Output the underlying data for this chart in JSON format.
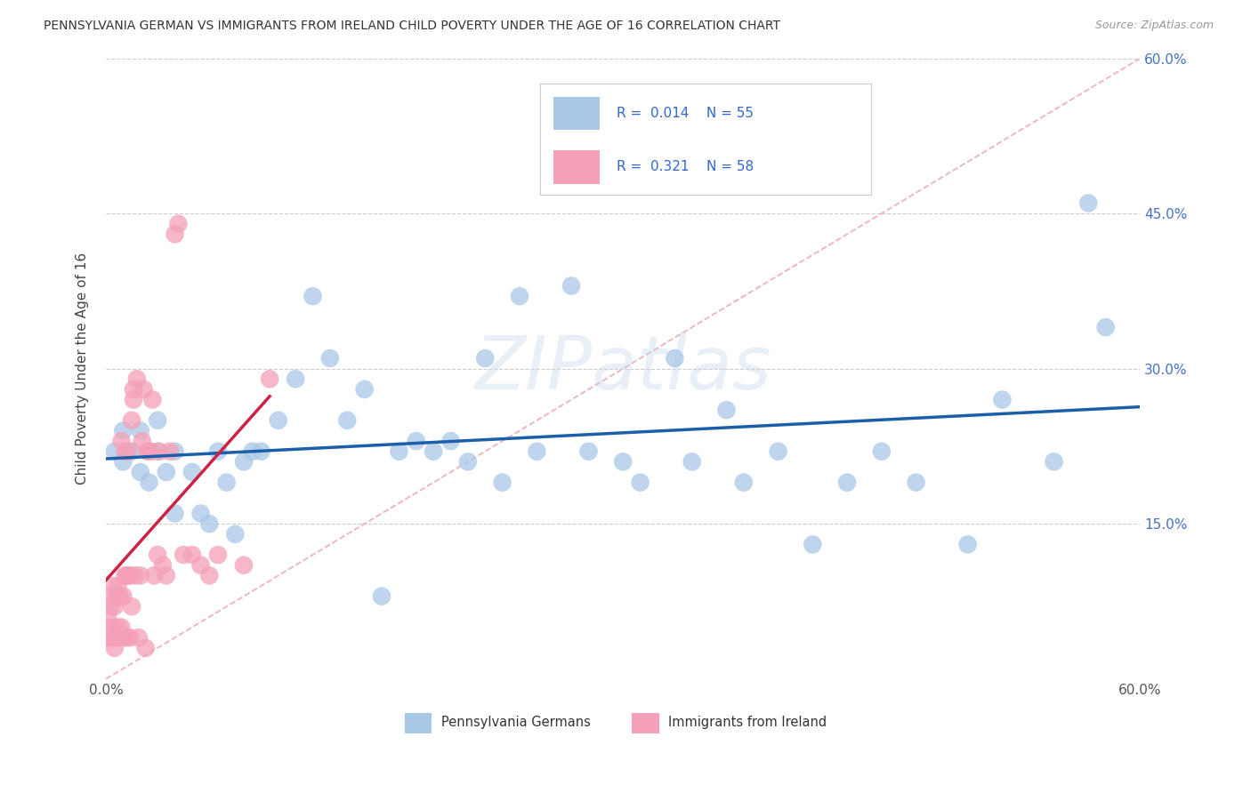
{
  "title": "PENNSYLVANIA GERMAN VS IMMIGRANTS FROM IRELAND CHILD POVERTY UNDER THE AGE OF 16 CORRELATION CHART",
  "source": "Source: ZipAtlas.com",
  "ylabel": "Child Poverty Under the Age of 16",
  "xlim": [
    0.0,
    0.6
  ],
  "ylim": [
    0.0,
    0.6
  ],
  "xticks": [
    0.0,
    0.1,
    0.2,
    0.3,
    0.4,
    0.5,
    0.6
  ],
  "yticks": [
    0.0,
    0.15,
    0.3,
    0.45,
    0.6
  ],
  "ytick_labels_right": [
    "",
    "15.0%",
    "30.0%",
    "45.0%",
    "60.0%"
  ],
  "xtick_labels": [
    "0.0%",
    "",
    "",
    "",
    "",
    "",
    "60.0%"
  ],
  "legend_label1": "Pennsylvania Germans",
  "legend_label2": "Immigrants from Ireland",
  "R1": "0.014",
  "N1": "55",
  "R2": "0.321",
  "N2": "58",
  "blue_color": "#a8c8e8",
  "pink_color": "#f4a0b8",
  "trend_blue_color": "#1a5fa8",
  "trend_pink_color": "#cc2244",
  "diag_color": "#e8a0b0",
  "watermark": "ZIPatlas",
  "blue_dots_x": [
    0.005,
    0.01,
    0.01,
    0.015,
    0.02,
    0.02,
    0.025,
    0.03,
    0.03,
    0.035,
    0.04,
    0.04,
    0.05,
    0.055,
    0.06,
    0.065,
    0.07,
    0.075,
    0.08,
    0.085,
    0.09,
    0.1,
    0.11,
    0.12,
    0.13,
    0.14,
    0.15,
    0.16,
    0.17,
    0.18,
    0.19,
    0.2,
    0.21,
    0.22,
    0.23,
    0.24,
    0.25,
    0.27,
    0.28,
    0.3,
    0.31,
    0.33,
    0.34,
    0.36,
    0.37,
    0.39,
    0.41,
    0.43,
    0.45,
    0.47,
    0.5,
    0.52,
    0.55,
    0.57,
    0.58
  ],
  "blue_dots_y": [
    0.22,
    0.21,
    0.24,
    0.22,
    0.2,
    0.24,
    0.19,
    0.22,
    0.25,
    0.2,
    0.16,
    0.22,
    0.2,
    0.16,
    0.15,
    0.22,
    0.19,
    0.14,
    0.21,
    0.22,
    0.22,
    0.25,
    0.29,
    0.37,
    0.31,
    0.25,
    0.28,
    0.08,
    0.22,
    0.23,
    0.22,
    0.23,
    0.21,
    0.31,
    0.19,
    0.37,
    0.22,
    0.38,
    0.22,
    0.21,
    0.19,
    0.31,
    0.21,
    0.26,
    0.19,
    0.22,
    0.13,
    0.19,
    0.22,
    0.19,
    0.13,
    0.27,
    0.21,
    0.46,
    0.34
  ],
  "pink_dots_x": [
    0.001,
    0.001,
    0.002,
    0.002,
    0.003,
    0.003,
    0.004,
    0.004,
    0.005,
    0.005,
    0.006,
    0.006,
    0.007,
    0.007,
    0.008,
    0.008,
    0.009,
    0.009,
    0.01,
    0.01,
    0.011,
    0.011,
    0.012,
    0.012,
    0.013,
    0.013,
    0.014,
    0.014,
    0.015,
    0.015,
    0.016,
    0.016,
    0.017,
    0.018,
    0.019,
    0.02,
    0.021,
    0.022,
    0.023,
    0.024,
    0.025,
    0.026,
    0.027,
    0.028,
    0.03,
    0.031,
    0.033,
    0.035,
    0.037,
    0.04,
    0.042,
    0.045,
    0.05,
    0.055,
    0.06,
    0.065,
    0.08,
    0.095
  ],
  "pink_dots_y": [
    0.04,
    0.06,
    0.05,
    0.08,
    0.04,
    0.07,
    0.05,
    0.09,
    0.03,
    0.07,
    0.04,
    0.08,
    0.05,
    0.09,
    0.04,
    0.08,
    0.05,
    0.23,
    0.04,
    0.08,
    0.22,
    0.1,
    0.04,
    0.1,
    0.1,
    0.22,
    0.04,
    0.1,
    0.07,
    0.25,
    0.27,
    0.28,
    0.1,
    0.29,
    0.04,
    0.1,
    0.23,
    0.28,
    0.03,
    0.22,
    0.22,
    0.22,
    0.27,
    0.1,
    0.12,
    0.22,
    0.11,
    0.1,
    0.22,
    0.43,
    0.44,
    0.12,
    0.12,
    0.11,
    0.1,
    0.12,
    0.11,
    0.29
  ]
}
